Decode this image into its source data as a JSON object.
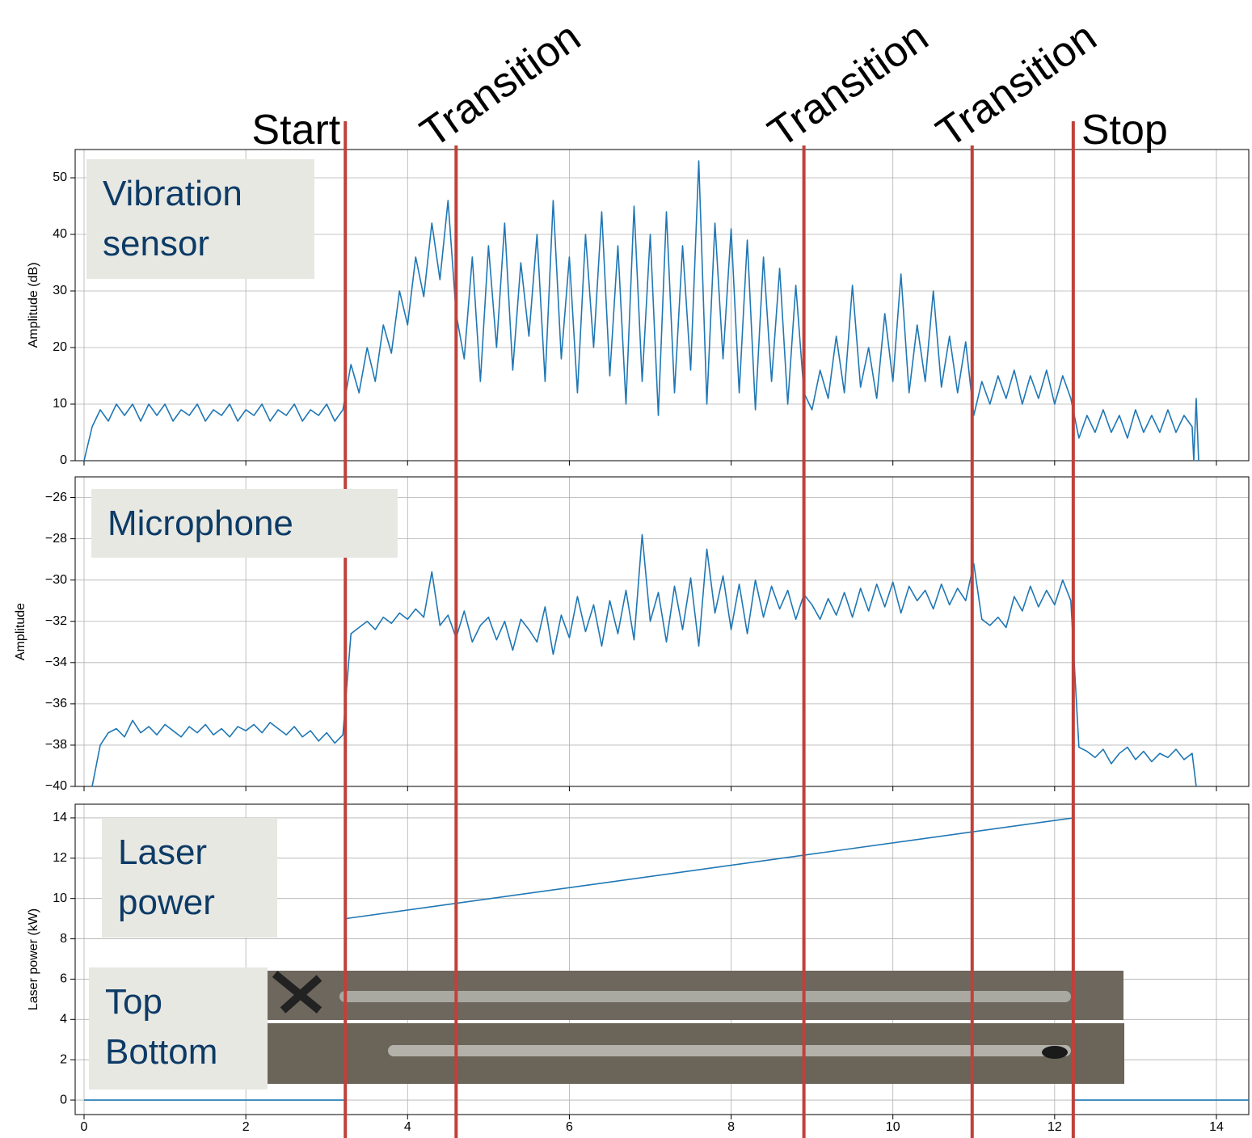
{
  "chart_data": [
    {
      "type": "line",
      "annotation": "Vibration sensor",
      "ylabel": "Amplitude (dB)",
      "color": "#1f77b4",
      "grid": true,
      "xlim": [
        -0.11,
        14.4
      ],
      "xticks": [
        0,
        2,
        4,
        6,
        8,
        10,
        12,
        14
      ],
      "ylim": [
        0,
        55
      ],
      "yticks": [
        0,
        10,
        20,
        30,
        40,
        50
      ],
      "x": [
        0,
        0.1,
        0.2,
        0.3,
        0.4,
        0.5,
        0.6,
        0.7,
        0.8,
        0.9,
        1,
        1.1,
        1.2,
        1.3,
        1.4,
        1.5,
        1.6,
        1.7,
        1.8,
        1.9,
        2,
        2.1,
        2.2,
        2.3,
        2.4,
        2.5,
        2.6,
        2.7,
        2.8,
        2.9,
        3,
        3.1,
        3.2,
        3.3,
        3.4,
        3.5,
        3.6,
        3.7,
        3.8,
        3.9,
        4,
        4.1,
        4.2,
        4.3,
        4.4,
        4.5,
        4.6,
        4.7,
        4.8,
        4.9,
        5,
        5.1,
        5.2,
        5.3,
        5.4,
        5.5,
        5.6,
        5.7,
        5.8,
        5.9,
        6,
        6.1,
        6.2,
        6.3,
        6.4,
        6.5,
        6.6,
        6.7,
        6.8,
        6.9,
        7,
        7.1,
        7.2,
        7.3,
        7.4,
        7.5,
        7.6,
        7.7,
        7.8,
        7.9,
        8,
        8.1,
        8.2,
        8.3,
        8.4,
        8.5,
        8.6,
        8.7,
        8.8,
        8.9,
        9,
        9.1,
        9.2,
        9.3,
        9.4,
        9.5,
        9.6,
        9.7,
        9.8,
        9.9,
        10,
        10.1,
        10.2,
        10.3,
        10.4,
        10.5,
        10.6,
        10.7,
        10.8,
        10.9,
        11,
        11.1,
        11.2,
        11.3,
        11.4,
        11.5,
        11.6,
        11.7,
        11.8,
        11.9,
        12,
        12.1,
        12.2,
        12.3,
        12.4,
        12.5,
        12.6,
        12.7,
        12.8,
        12.9,
        13,
        13.1,
        13.2,
        13.3,
        13.4,
        13.5,
        13.6,
        13.7,
        13.72,
        13.75,
        13.78
      ],
      "values": [
        0,
        6,
        9,
        7,
        10,
        8,
        10,
        7,
        10,
        8,
        10,
        7,
        9,
        8,
        10,
        7,
        9,
        8,
        10,
        7,
        9,
        8,
        10,
        7,
        9,
        8,
        10,
        7,
        9,
        8,
        10,
        7,
        9,
        17,
        12,
        20,
        14,
        24,
        19,
        30,
        24,
        36,
        29,
        42,
        32,
        46,
        26,
        18,
        36,
        14,
        38,
        20,
        42,
        16,
        35,
        22,
        40,
        14,
        46,
        18,
        36,
        12,
        40,
        20,
        44,
        15,
        38,
        10,
        45,
        14,
        40,
        8,
        44,
        12,
        38,
        16,
        53,
        10,
        42,
        18,
        41,
        12,
        39,
        9,
        36,
        14,
        34,
        10,
        31,
        12,
        9,
        16,
        11,
        22,
        12,
        31,
        13,
        20,
        11,
        26,
        14,
        33,
        12,
        24,
        14,
        30,
        13,
        22,
        12,
        21,
        8,
        14,
        10,
        15,
        11,
        16,
        10,
        15,
        11,
        16,
        10,
        15,
        11,
        4,
        8,
        5,
        9,
        5,
        8,
        4,
        9,
        5,
        8,
        5,
        9,
        5,
        8,
        6,
        0,
        11,
        0
      ]
    },
    {
      "type": "line",
      "annotation": "Microphone",
      "ylabel": "Amplitude",
      "color": "#1f77b4",
      "grid": true,
      "xlim": [
        -0.11,
        14.4
      ],
      "xticks": [
        0,
        2,
        4,
        6,
        8,
        10,
        12,
        14
      ],
      "ylim": [
        -40,
        -25
      ],
      "yticks": [
        {
          "value": -40,
          "label": "−40"
        },
        {
          "value": -38,
          "label": "−38"
        },
        {
          "value": -36,
          "label": "−36"
        },
        {
          "value": -34,
          "label": "−34"
        },
        {
          "value": -32,
          "label": "−32"
        },
        {
          "value": -30,
          "label": "−30"
        },
        {
          "value": -28,
          "label": "−28"
        },
        {
          "value": -26,
          "label": "−26"
        }
      ],
      "x": [
        0.1,
        0.2,
        0.3,
        0.4,
        0.5,
        0.6,
        0.7,
        0.8,
        0.9,
        1,
        1.1,
        1.2,
        1.3,
        1.4,
        1.5,
        1.6,
        1.7,
        1.8,
        1.9,
        2,
        2.1,
        2.2,
        2.3,
        2.4,
        2.5,
        2.6,
        2.7,
        2.8,
        2.9,
        3,
        3.1,
        3.2,
        3.3,
        3.4,
        3.5,
        3.6,
        3.7,
        3.8,
        3.9,
        4,
        4.1,
        4.2,
        4.3,
        4.4,
        4.5,
        4.6,
        4.7,
        4.8,
        4.9,
        5,
        5.1,
        5.2,
        5.3,
        5.4,
        5.5,
        5.6,
        5.7,
        5.8,
        5.9,
        6,
        6.1,
        6.2,
        6.3,
        6.4,
        6.5,
        6.6,
        6.7,
        6.8,
        6.9,
        7,
        7.1,
        7.2,
        7.3,
        7.4,
        7.5,
        7.6,
        7.7,
        7.8,
        7.9,
        8,
        8.1,
        8.2,
        8.3,
        8.4,
        8.5,
        8.6,
        8.7,
        8.8,
        8.9,
        9,
        9.1,
        9.2,
        9.3,
        9.4,
        9.5,
        9.6,
        9.7,
        9.8,
        9.9,
        10,
        10.1,
        10.2,
        10.3,
        10.4,
        10.5,
        10.6,
        10.7,
        10.8,
        10.9,
        11,
        11.1,
        11.2,
        11.3,
        11.4,
        11.5,
        11.6,
        11.7,
        11.8,
        11.9,
        12,
        12.1,
        12.2,
        12.3,
        12.4,
        12.5,
        12.6,
        12.7,
        12.8,
        12.9,
        13,
        13.1,
        13.2,
        13.3,
        13.4,
        13.5,
        13.6,
        13.7,
        13.75
      ],
      "values": [
        -40,
        -38,
        -37.4,
        -37.2,
        -37.6,
        -36.8,
        -37.4,
        -37.1,
        -37.5,
        -37,
        -37.3,
        -37.6,
        -37.1,
        -37.4,
        -37,
        -37.5,
        -37.2,
        -37.6,
        -37.1,
        -37.3,
        -37,
        -37.4,
        -36.9,
        -37.2,
        -37.5,
        -37.1,
        -37.6,
        -37.3,
        -37.8,
        -37.4,
        -37.9,
        -37.5,
        -32.6,
        -32.3,
        -32,
        -32.4,
        -31.8,
        -32.1,
        -31.6,
        -31.9,
        -31.4,
        -31.8,
        -29.6,
        -32.2,
        -31.7,
        -32.8,
        -31.5,
        -33,
        -32.2,
        -31.8,
        -32.9,
        -32,
        -33.4,
        -31.9,
        -32.4,
        -33,
        -31.3,
        -33.6,
        -31.7,
        -32.8,
        -30.8,
        -32.5,
        -31.2,
        -33.2,
        -31,
        -32.6,
        -30.5,
        -32.9,
        -27.8,
        -32,
        -30.6,
        -33,
        -30.3,
        -32.4,
        -29.9,
        -33.2,
        -28.5,
        -31.6,
        -29.8,
        -32.4,
        -30.2,
        -32.6,
        -30,
        -31.8,
        -30.3,
        -31.4,
        -30.5,
        -31.9,
        -30.7,
        -31.2,
        -31.9,
        -30.9,
        -31.7,
        -30.6,
        -31.8,
        -30.4,
        -31.5,
        -30.2,
        -31.3,
        -30.1,
        -31.6,
        -30.3,
        -31,
        -30.5,
        -31.4,
        -30.2,
        -31.2,
        -30.4,
        -31,
        -29.2,
        -31.9,
        -32.2,
        -31.8,
        -32.3,
        -30.8,
        -31.5,
        -30.3,
        -31.3,
        -30.5,
        -31.2,
        -30,
        -31,
        -38.1,
        -38.3,
        -38.6,
        -38.2,
        -38.9,
        -38.4,
        -38.1,
        -38.7,
        -38.3,
        -38.8,
        -38.4,
        -38.6,
        -38.2,
        -38.7,
        -38.4,
        -40
      ]
    },
    {
      "type": "line",
      "annotation": "Laser power",
      "ylabel": "Laser power (kW)",
      "color": "#1f77b4",
      "grid": true,
      "xlim": [
        -0.11,
        14.4
      ],
      "xticks": [
        0,
        2,
        4,
        6,
        8,
        10,
        12,
        14
      ],
      "ylim": [
        -0.72,
        14.68
      ],
      "yticks": [
        0,
        2,
        4,
        6,
        8,
        10,
        12,
        14
      ],
      "x": [
        0,
        3.23,
        3.23,
        12.23,
        12.23,
        14.4
      ],
      "values": [
        0,
        0,
        9,
        14,
        0,
        0
      ]
    }
  ],
  "markers": [
    {
      "label": "Start",
      "x": 3.23
    },
    {
      "label": "Transition",
      "x": 4.6
    },
    {
      "label": "Transition",
      "x": 8.9
    },
    {
      "label": "Transition",
      "x": 10.98
    },
    {
      "label": "Stop",
      "x": 12.23
    }
  ],
  "photo_labels": [
    "Top",
    "Bottom"
  ]
}
